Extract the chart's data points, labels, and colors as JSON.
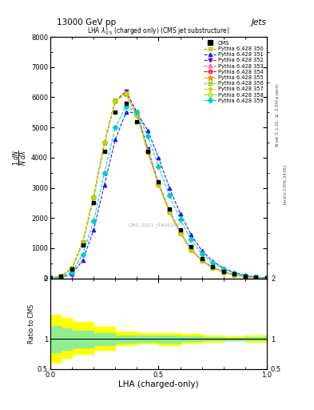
{
  "title_top": "13000 GeV pp",
  "title_right": "Jets",
  "plot_title": "LHA $\\lambda^1_{0.5}$ (charged only) (CMS jet substructure)",
  "xlabel": "LHA (charged-only)",
  "ylabel_main": "$\\frac{1}{N} \\frac{dN}{d\\lambda}$",
  "ylabel_ratio": "Ratio to CMS",
  "watermark": "CMS_2021_I1920187",
  "right_label_top": "Rivet 3.1.10, $\\geq$ 2.9M events",
  "right_label_bottom": "[arXiv:1306.3436]",
  "xlim": [
    0.0,
    1.0
  ],
  "ylim_main": [
    0,
    8000
  ],
  "ylim_ratio": [
    0.5,
    2.0
  ],
  "yticks_main": [
    0,
    1000,
    2000,
    3000,
    4000,
    5000,
    6000,
    7000,
    8000
  ],
  "x_data": [
    0.0,
    0.05,
    0.1,
    0.15,
    0.2,
    0.25,
    0.3,
    0.35,
    0.4,
    0.45,
    0.5,
    0.55,
    0.6,
    0.65,
    0.7,
    0.75,
    0.8,
    0.85,
    0.9,
    0.95,
    1.0
  ],
  "cms_data": [
    10,
    60,
    300,
    1100,
    2500,
    4200,
    5500,
    5800,
    5200,
    4200,
    3200,
    2300,
    1600,
    1050,
    660,
    400,
    240,
    140,
    75,
    35,
    12
  ],
  "cms_color": "#000000",
  "series": [
    {
      "label": "Pythia 6.428 350",
      "color": "#c8b400",
      "linestyle": "--",
      "marker": "s",
      "filled": false,
      "data": [
        12,
        70,
        340,
        1200,
        2700,
        4500,
        5900,
        6100,
        5400,
        4200,
        3100,
        2200,
        1500,
        950,
        590,
        355,
        210,
        120,
        62,
        28,
        10
      ]
    },
    {
      "label": "Pythia 6.428 351",
      "color": "#1c1cff",
      "linestyle": "--",
      "marker": "^",
      "filled": true,
      "data": [
        8,
        30,
        150,
        600,
        1600,
        3100,
        4600,
        5500,
        5500,
        4900,
        4000,
        3000,
        2150,
        1450,
        920,
        570,
        340,
        195,
        103,
        48,
        18
      ]
    },
    {
      "label": "Pythia 6.428 352",
      "color": "#7700aa",
      "linestyle": "--",
      "marker": "v",
      "filled": true,
      "data": [
        12,
        68,
        330,
        1180,
        2680,
        4480,
        5880,
        6200,
        5500,
        4300,
        3150,
        2250,
        1530,
        970,
        600,
        362,
        214,
        122,
        63,
        29,
        10
      ]
    },
    {
      "label": "Pythia 6.428 353",
      "color": "#ff55aa",
      "linestyle": "--",
      "marker": "^",
      "filled": false,
      "data": [
        12,
        68,
        335,
        1190,
        2690,
        4490,
        5890,
        6120,
        5420,
        4220,
        3120,
        2220,
        1510,
        960,
        595,
        358,
        212,
        121,
        62,
        28,
        10
      ]
    },
    {
      "label": "Pythia 6.428 354",
      "color": "#ff0000",
      "linestyle": "--",
      "marker": "o",
      "filled": false,
      "data": [
        12,
        68,
        334,
        1188,
        2688,
        4488,
        5888,
        6115,
        5415,
        4215,
        3115,
        2215,
        1508,
        958,
        593,
        356,
        211,
        120,
        62,
        28,
        10
      ]
    },
    {
      "label": "Pythia 6.428 355",
      "color": "#ff8800",
      "linestyle": "--",
      "marker": "*",
      "filled": true,
      "data": [
        12,
        69,
        336,
        1192,
        2692,
        4492,
        5892,
        6118,
        5418,
        4218,
        3118,
        2218,
        1509,
        959,
        594,
        357,
        211,
        121,
        62,
        28,
        10
      ]
    },
    {
      "label": "Pythia 6.428 356",
      "color": "#88cc00",
      "linestyle": "--",
      "marker": "s",
      "filled": false,
      "data": [
        12,
        69,
        336,
        1191,
        2691,
        4491,
        5891,
        6117,
        5417,
        4217,
        3117,
        2217,
        1509,
        959,
        594,
        357,
        211,
        121,
        62,
        28,
        10
      ]
    },
    {
      "label": "Pythia 6.428 357",
      "color": "#ddcc00",
      "linestyle": "--",
      "marker": "P",
      "filled": true,
      "data": [
        12,
        69,
        335,
        1190,
        2690,
        4490,
        5890,
        6116,
        5416,
        4216,
        3116,
        2216,
        1508,
        958,
        593,
        356,
        211,
        120,
        62,
        28,
        10
      ]
    },
    {
      "label": "Pythia 6.428 358",
      "color": "#aade00",
      "linestyle": "--",
      "marker": "D",
      "filled": false,
      "data": [
        12,
        69,
        335,
        1190,
        2690,
        4490,
        5890,
        6115,
        5415,
        4215,
        3115,
        2215,
        1508,
        958,
        593,
        356,
        210,
        120,
        62,
        28,
        10
      ]
    },
    {
      "label": "Pythia 6.428 359",
      "color": "#00cccc",
      "linestyle": "--",
      "marker": "D",
      "filled": true,
      "data": [
        9,
        40,
        200,
        800,
        1900,
        3500,
        5000,
        5700,
        5500,
        4700,
        3700,
        2750,
        1950,
        1280,
        820,
        510,
        305,
        175,
        92,
        42,
        15
      ]
    }
  ],
  "ratio_band_yellow_x": [
    0.0,
    0.05,
    0.1,
    0.2,
    0.3,
    0.4,
    0.5,
    0.6,
    0.7,
    0.8,
    0.9,
    1.0
  ],
  "ratio_band_yellow_low": [
    0.6,
    0.68,
    0.75,
    0.82,
    0.9,
    0.92,
    0.9,
    0.93,
    0.95,
    0.97,
    0.95,
    0.93
  ],
  "ratio_band_yellow_high": [
    1.4,
    1.35,
    1.28,
    1.2,
    1.12,
    1.1,
    1.1,
    1.08,
    1.06,
    1.04,
    1.06,
    1.08
  ],
  "ratio_band_green_x": [
    0.0,
    0.05,
    0.1,
    0.2,
    0.3,
    0.4,
    0.5,
    0.6,
    0.7,
    0.8,
    0.9,
    1.0
  ],
  "ratio_band_green_low": [
    0.78,
    0.82,
    0.86,
    0.9,
    0.94,
    0.95,
    0.94,
    0.96,
    0.97,
    0.98,
    0.97,
    0.96
  ],
  "ratio_band_green_high": [
    1.22,
    1.18,
    1.14,
    1.1,
    1.06,
    1.05,
    1.06,
    1.04,
    1.03,
    1.02,
    1.03,
    1.04
  ]
}
